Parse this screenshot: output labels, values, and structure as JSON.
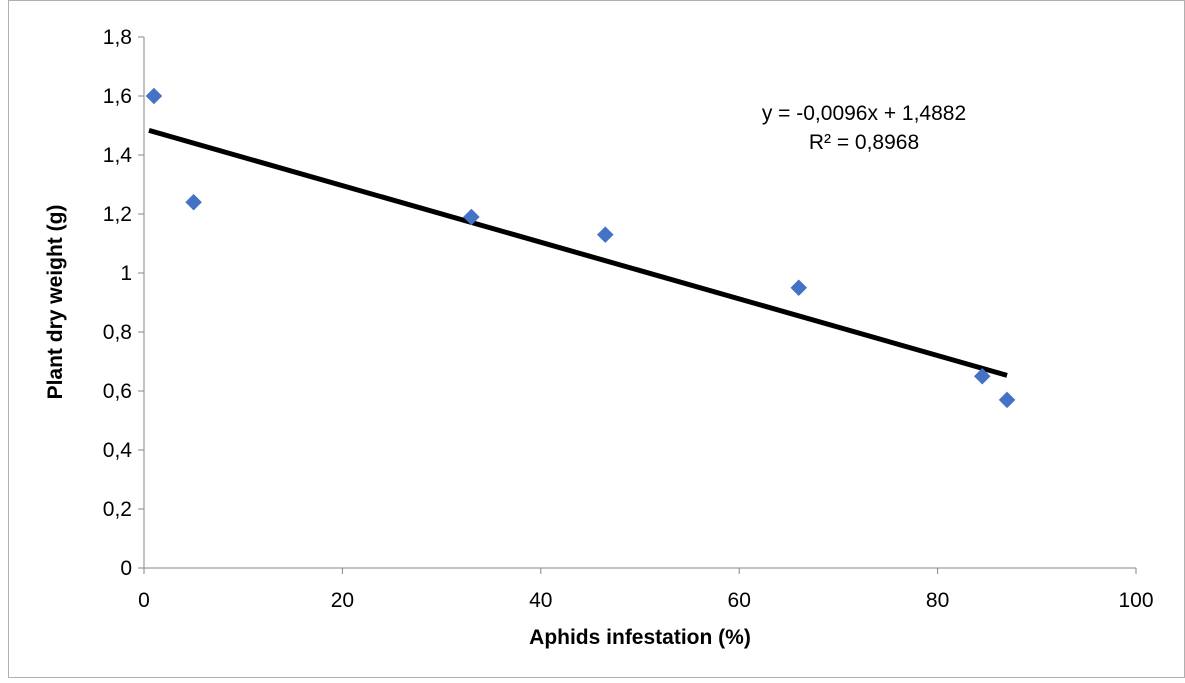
{
  "chart_data": {
    "type": "scatter",
    "title": "",
    "xlabel": "Aphids infestation (%)",
    "ylabel": "Plant dry weight (g)",
    "xlim": [
      0,
      100
    ],
    "ylim": [
      0,
      1.8
    ],
    "x_ticks": [
      0,
      20,
      40,
      60,
      80,
      100
    ],
    "y_ticks": [
      0,
      0.2,
      0.4,
      0.6,
      0.8,
      1,
      1.2,
      1.4,
      1.6,
      1.8
    ],
    "x_tick_labels": [
      "0",
      "20",
      "40",
      "60",
      "80",
      "100"
    ],
    "y_tick_labels": [
      "0",
      "0,2",
      "0,4",
      "0,6",
      "0,8",
      "1",
      "1,2",
      "1,4",
      "1,6",
      "1,8"
    ],
    "grid": false,
    "series": [
      {
        "marker": "diamond",
        "color": "#4472C4",
        "x": [
          1,
          5,
          33,
          46.5,
          66,
          84.5,
          87
        ],
        "y": [
          1.6,
          1.24,
          1.19,
          1.13,
          0.95,
          0.65,
          0.57
        ]
      }
    ],
    "trendline": {
      "type": "linear",
      "color": "#000000",
      "slope": -0.0096,
      "intercept": 1.4882,
      "x_range": [
        0.5,
        87
      ],
      "equation_label": "y = -0,0096x + 1,4882",
      "r2_label": "R² = 0,8968"
    }
  }
}
